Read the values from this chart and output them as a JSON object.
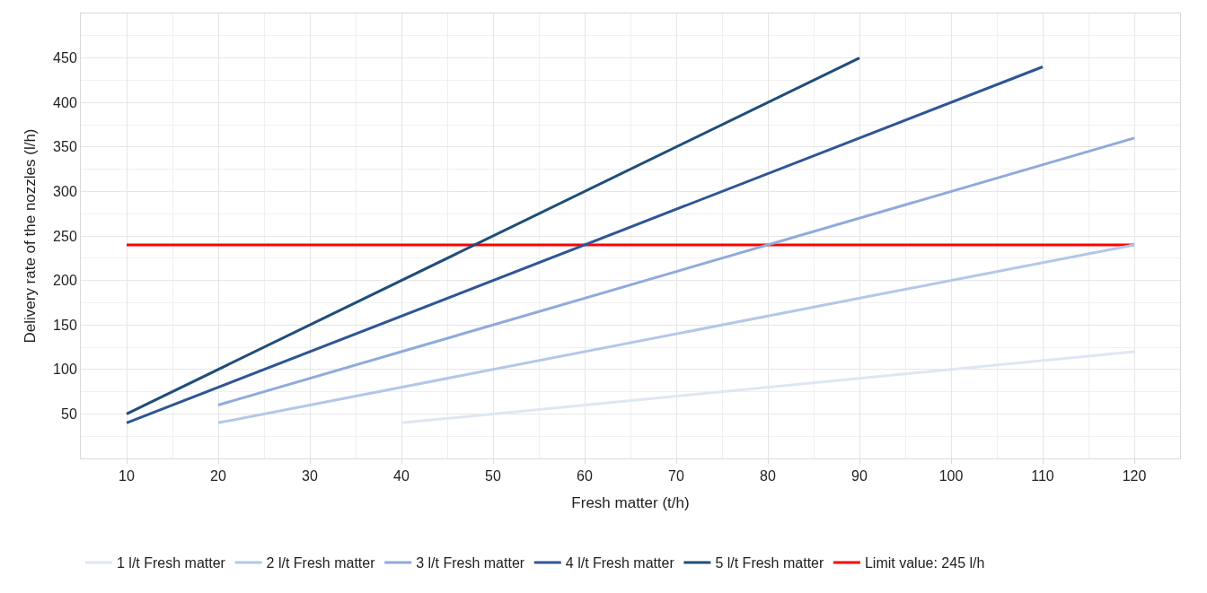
{
  "chart_data": {
    "type": "line",
    "xlabel": "Fresh matter (t/h)",
    "ylabel": "Delivery rate of the nozzles (l/h)",
    "xlim": [
      5,
      125
    ],
    "xticks": [
      10,
      20,
      30,
      40,
      50,
      60,
      70,
      80,
      90,
      100,
      110,
      120
    ],
    "ylim": [
      0,
      500
    ],
    "yticks": [
      50,
      100,
      150,
      200,
      250,
      300,
      350,
      400,
      450
    ],
    "grid": true,
    "legend": "bottom",
    "marker": "none",
    "line_style": "solid",
    "series": [
      {
        "name": "1 l/t Fresh matter",
        "color": "#dfe6f3",
        "x": [
          40,
          120
        ],
        "values": [
          40,
          120
        ]
      },
      {
        "name": "2 l/t Fresh matter",
        "color": "#b4c7e7",
        "x": [
          20,
          120
        ],
        "values": [
          40,
          240
        ]
      },
      {
        "name": "3 l/t Fresh matter",
        "color": "#8faadc",
        "x": [
          20,
          120
        ],
        "values": [
          60,
          360
        ]
      },
      {
        "name": "4 l/t Fresh matter",
        "color": "#2f5597",
        "x": [
          10,
          110
        ],
        "values": [
          40,
          440
        ]
      },
      {
        "name": "5 l/t Fresh matter",
        "color": "#1f4e79",
        "x": [
          10,
          90
        ],
        "values": [
          50,
          450
        ]
      },
      {
        "name": "Limit value: 245 l/h",
        "color": "#ff0000",
        "x": [
          10,
          120
        ],
        "values": [
          240,
          240
        ]
      }
    ]
  }
}
